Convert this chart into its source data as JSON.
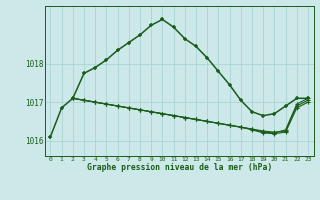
{
  "title": "Graphe pression niveau de la mer (hPa)",
  "background_color": "#cce8e8",
  "line_color": "#1a5c1a",
  "grid_color": "#aad4d4",
  "x_labels": [
    "0",
    "1",
    "2",
    "3",
    "4",
    "5",
    "6",
    "7",
    "8",
    "9",
    "10",
    "11",
    "12",
    "13",
    "14",
    "15",
    "16",
    "17",
    "18",
    "19",
    "20",
    "21",
    "22",
    "23"
  ],
  "ylim": [
    1015.6,
    1019.5
  ],
  "yticks": [
    1016,
    1017,
    1018
  ],
  "series1_x": [
    0,
    1,
    2,
    3,
    4,
    5,
    6,
    7,
    8,
    9,
    10,
    11,
    12,
    13,
    14,
    15,
    16,
    17,
    18,
    19,
    20,
    21,
    22,
    23
  ],
  "series1_y": [
    1016.1,
    1016.85,
    1017.1,
    1017.75,
    1017.9,
    1018.1,
    1018.35,
    1018.55,
    1018.75,
    1019.0,
    1019.15,
    1018.95,
    1018.65,
    1018.45,
    1018.15,
    1017.8,
    1017.45,
    1017.05,
    1016.75,
    1016.65,
    1016.7,
    1016.9,
    1017.1,
    1017.1
  ],
  "series2_x": [
    2,
    3,
    4,
    5,
    6,
    7,
    8,
    9,
    10,
    11,
    12,
    13,
    14,
    15,
    16,
    17,
    18,
    19,
    20,
    21,
    22,
    23
  ],
  "series2_y": [
    1017.1,
    1017.05,
    1017.0,
    1016.95,
    1016.9,
    1016.85,
    1016.8,
    1016.75,
    1016.7,
    1016.65,
    1016.6,
    1016.55,
    1016.5,
    1016.45,
    1016.4,
    1016.35,
    1016.3,
    1016.25,
    1016.22,
    1016.25,
    1016.9,
    1017.05
  ],
  "series3_x": [
    2,
    3,
    4,
    5,
    6,
    7,
    8,
    9,
    10,
    11,
    12,
    13,
    14,
    15,
    16,
    17,
    18,
    19,
    20,
    21,
    22,
    23
  ],
  "series3_y": [
    1017.1,
    1017.05,
    1017.0,
    1016.95,
    1016.9,
    1016.85,
    1016.8,
    1016.75,
    1016.7,
    1016.65,
    1016.6,
    1016.55,
    1016.5,
    1016.45,
    1016.4,
    1016.35,
    1016.3,
    1016.22,
    1016.2,
    1016.28,
    1016.95,
    1017.1
  ],
  "series4_x": [
    2,
    3,
    4,
    5,
    6,
    7,
    8,
    9,
    10,
    11,
    12,
    13,
    14,
    15,
    16,
    17,
    18,
    19,
    20,
    21,
    22,
    23
  ],
  "series4_y": [
    1017.1,
    1017.05,
    1017.0,
    1016.95,
    1016.9,
    1016.85,
    1016.8,
    1016.75,
    1016.7,
    1016.65,
    1016.6,
    1016.55,
    1016.5,
    1016.45,
    1016.4,
    1016.35,
    1016.28,
    1016.2,
    1016.18,
    1016.22,
    1016.85,
    1017.0
  ]
}
